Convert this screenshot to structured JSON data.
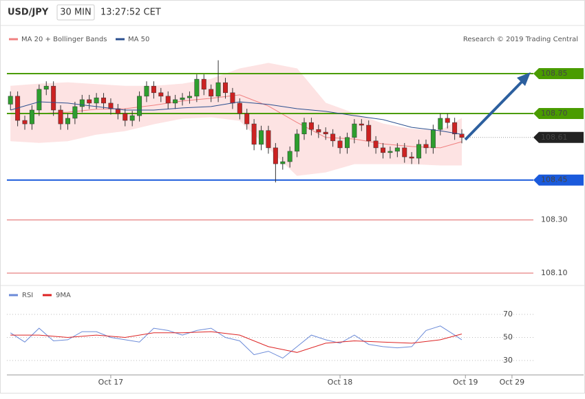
{
  "header": {
    "symbol": "USD/JPY",
    "interval": "30 MIN",
    "time": "13:27:52 CET",
    "credit": "Research © 2019 Trading Central"
  },
  "chart_data": [
    {
      "type": "candlestick",
      "xlim": [
        -0.5,
        80
      ],
      "ylim": [
        108.05,
        108.95
      ],
      "up_color": "#2e9e2e",
      "down_color": "#cc2222",
      "open": [
        108.735,
        108.765,
        108.674,
        108.661,
        108.713,
        108.791,
        108.803,
        108.713,
        108.661,
        108.682,
        108.726,
        108.752,
        108.739,
        108.759,
        108.739,
        108.718,
        108.7,
        108.674,
        108.692,
        108.765,
        108.803,
        108.778,
        108.765,
        108.739,
        108.752,
        108.759,
        108.765,
        108.829,
        108.791,
        108.765,
        108.816,
        108.778,
        108.739,
        108.7,
        108.661,
        108.584,
        108.636,
        108.571,
        108.511,
        108.519,
        108.558,
        108.623,
        108.666,
        108.64,
        108.63,
        108.623,
        108.597,
        108.571,
        108.61,
        108.661,
        108.656,
        108.597,
        108.571,
        108.553,
        108.558,
        108.571,
        108.537,
        108.532,
        108.584,
        108.571,
        108.64,
        108.682,
        108.666,
        108.623
      ],
      "high": [
        108.783,
        108.783,
        108.692,
        108.731,
        108.809,
        108.821,
        108.821,
        108.731,
        108.7,
        108.744,
        108.77,
        108.77,
        108.777,
        108.777,
        108.757,
        108.736,
        108.718,
        108.71,
        108.783,
        108.821,
        108.821,
        108.796,
        108.783,
        108.77,
        108.777,
        108.783,
        108.847,
        108.847,
        108.809,
        108.9,
        108.834,
        108.796,
        108.757,
        108.718,
        108.679,
        108.654,
        108.654,
        108.589,
        108.537,
        108.576,
        108.641,
        108.684,
        108.684,
        108.658,
        108.648,
        108.641,
        108.615,
        108.628,
        108.679,
        108.679,
        108.674,
        108.615,
        108.589,
        108.576,
        108.589,
        108.589,
        108.555,
        108.602,
        108.602,
        108.658,
        108.7,
        108.7,
        108.684,
        108.641
      ],
      "low": [
        108.713,
        108.652,
        108.639,
        108.639,
        108.691,
        108.769,
        108.691,
        108.639,
        108.639,
        108.66,
        108.704,
        108.717,
        108.717,
        108.717,
        108.696,
        108.678,
        108.652,
        108.652,
        108.67,
        108.743,
        108.756,
        108.743,
        108.717,
        108.717,
        108.73,
        108.737,
        108.743,
        108.769,
        108.743,
        108.743,
        108.756,
        108.717,
        108.678,
        108.639,
        108.562,
        108.562,
        108.549,
        108.441,
        108.489,
        108.497,
        108.536,
        108.601,
        108.618,
        108.608,
        108.601,
        108.575,
        108.549,
        108.549,
        108.588,
        108.634,
        108.575,
        108.549,
        108.531,
        108.531,
        108.536,
        108.515,
        108.51,
        108.51,
        108.549,
        108.549,
        108.618,
        108.644,
        108.601,
        108.588
      ],
      "close": [
        108.765,
        108.674,
        108.661,
        108.713,
        108.791,
        108.803,
        108.713,
        108.661,
        108.682,
        108.726,
        108.752,
        108.739,
        108.759,
        108.739,
        108.718,
        108.7,
        108.674,
        108.692,
        108.765,
        108.803,
        108.778,
        108.765,
        108.739,
        108.752,
        108.759,
        108.765,
        108.829,
        108.791,
        108.765,
        108.816,
        108.778,
        108.739,
        108.7,
        108.661,
        108.584,
        108.636,
        108.571,
        108.511,
        108.519,
        108.558,
        108.623,
        108.666,
        108.64,
        108.63,
        108.623,
        108.597,
        108.571,
        108.61,
        108.661,
        108.656,
        108.597,
        108.571,
        108.553,
        108.558,
        108.571,
        108.537,
        108.532,
        108.584,
        108.571,
        108.64,
        108.682,
        108.666,
        108.623,
        108.61
      ],
      "series": [
        {
          "name": "MA 20 + Bollinger Bands",
          "type": "band",
          "color": "#f08080",
          "fill": "#fde3e3",
          "x": [
            0,
            4,
            8,
            12,
            16,
            20,
            24,
            28,
            32,
            36,
            40,
            44,
            48,
            52,
            56,
            60,
            63
          ],
          "upper": [
            108.803,
            108.811,
            108.816,
            108.809,
            108.803,
            108.803,
            108.811,
            108.829,
            108.868,
            108.889,
            108.868,
            108.739,
            108.7,
            108.661,
            108.641,
            108.635,
            108.682
          ],
          "lower": [
            108.597,
            108.591,
            108.597,
            108.622,
            108.635,
            108.661,
            108.682,
            108.687,
            108.674,
            108.571,
            108.467,
            108.48,
            108.511,
            108.511,
            108.511,
            108.506,
            108.506
          ],
          "values": [
            108.7,
            108.7,
            108.705,
            108.716,
            108.718,
            108.731,
            108.747,
            108.757,
            108.77,
            108.728,
            108.666,
            108.61,
            108.604,
            108.586,
            108.576,
            108.571,
            108.594
          ]
        },
        {
          "name": "MA 50",
          "type": "line",
          "color": "#2b4f8f",
          "x": [
            0,
            4,
            8,
            12,
            16,
            20,
            24,
            28,
            32,
            36,
            40,
            44,
            48,
            52,
            56,
            60,
            63
          ],
          "values": [
            108.713,
            108.744,
            108.739,
            108.726,
            108.713,
            108.713,
            108.721,
            108.726,
            108.744,
            108.734,
            108.718,
            108.708,
            108.692,
            108.677,
            108.648,
            108.635,
            108.622
          ]
        }
      ],
      "levels": [
        {
          "value": 108.85,
          "color": "#4a9c00",
          "style": "box"
        },
        {
          "value": 108.7,
          "label": "108.70",
          "color": "#4a9c00",
          "style": "box"
        },
        {
          "value": 108.61,
          "color": "#222222",
          "style": "current"
        },
        {
          "value": 108.45,
          "color": "#1a5adc",
          "style": "box"
        },
        {
          "value": 108.3,
          "label": "108.30",
          "color": "#e06060",
          "style": "text"
        },
        {
          "value": 108.1,
          "label": "108.10",
          "color": "#e06060",
          "style": "text"
        }
      ]
    },
    {
      "type": "line",
      "xlim": [
        -0.5,
        80
      ],
      "ylim": [
        20,
        80
      ],
      "yticks": [
        70,
        50,
        30
      ],
      "grid": true,
      "xticks": [
        {
          "value": 14,
          "label": "Oct 17"
        },
        {
          "value": 46,
          "label": "Oct 18"
        },
        {
          "value": 63.5,
          "label": "Oct 19"
        },
        {
          "value": 70,
          "label": "Oct 29"
        }
      ],
      "series": [
        {
          "name": "RSI",
          "color": "#6a8ad8",
          "x": [
            0,
            2,
            4,
            6,
            8,
            10,
            12,
            14,
            16,
            18,
            20,
            22,
            24,
            26,
            28,
            30,
            32,
            34,
            36,
            38,
            40,
            42,
            44,
            46,
            48,
            50,
            52,
            54,
            56,
            58,
            60,
            62,
            63
          ],
          "values": [
            54,
            46,
            58,
            47,
            48,
            55,
            55,
            50,
            48,
            46,
            58,
            56,
            52,
            56,
            58,
            50,
            47,
            35,
            38,
            32,
            42,
            52,
            48,
            45,
            52,
            44,
            42,
            41,
            42,
            56,
            60,
            52,
            48
          ]
        },
        {
          "name": "9MA",
          "color": "#dd2222",
          "x": [
            0,
            4,
            8,
            12,
            16,
            20,
            24,
            28,
            32,
            36,
            40,
            44,
            48,
            52,
            56,
            60,
            63
          ],
          "values": [
            52,
            52,
            50,
            52,
            50,
            54,
            54,
            55,
            52,
            42,
            37,
            45,
            47,
            46,
            45,
            48,
            53
          ]
        }
      ]
    }
  ]
}
